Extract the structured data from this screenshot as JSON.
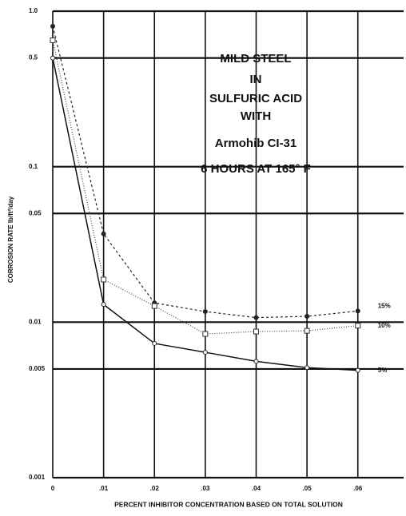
{
  "chart_data": {
    "type": "line",
    "ylabel": "CORROSION RATE lb/ft²/day",
    "xlabel": "PERCENT INHIBITOR CONCENTRATION BASED ON TOTAL SOLUTION",
    "annotations": [
      "MILD STEEL",
      "IN",
      "SULFURIC ACID",
      "WITH",
      "Armohib CI-31",
      "6 HOURS AT 165° F"
    ],
    "x": [
      0,
      0.01,
      0.02,
      0.03,
      0.04,
      0.05,
      0.06
    ],
    "xlim": [
      0,
      0.069
    ],
    "xticks": [
      0,
      {
        "value": 0.01,
        "label": ".01"
      },
      {
        "value": 0.02,
        "label": ".02"
      },
      {
        "value": 0.03,
        "label": ".03"
      },
      {
        "value": 0.04,
        "label": ".04"
      },
      {
        "value": 0.05,
        "label": ".05"
      },
      {
        "value": 0.06,
        "label": ".06"
      }
    ],
    "ylim": [
      0.001,
      1
    ],
    "yticks": [
      {
        "value": 1,
        "label": "1.0"
      },
      0.5,
      0.1,
      0.05,
      0.01,
      0.005,
      0.001
    ],
    "log_y": true,
    "grid": true,
    "series": [
      {
        "name": "15%",
        "color": "#222",
        "dash": "3,3",
        "values": [
          0.8,
          0.037,
          0.0133,
          0.0117,
          0.0107,
          0.0109,
          0.0118
        ]
      },
      {
        "name": "10%",
        "color": "#444",
        "dash": "1,2",
        "values": [
          0.65,
          0.0188,
          0.0127,
          0.0084,
          0.0087,
          0.0088,
          0.0095
        ]
      },
      {
        "name": "5%",
        "color": "#111",
        "dash": "",
        "values": [
          0.5,
          0.013,
          0.0073,
          0.0064,
          0.0056,
          0.0051,
          0.0049
        ]
      }
    ]
  }
}
